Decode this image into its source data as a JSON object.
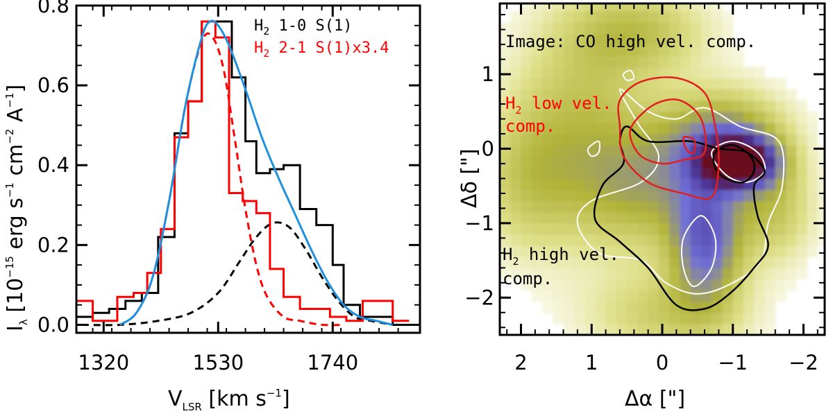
{
  "chart_data": [
    {
      "type": "line",
      "panel": "left",
      "title": "",
      "xlabel_main": "V",
      "xlabel_sub": "LSR",
      "xlabel_rest": " [km s",
      "xlabel_exp": "−1",
      "xlabel_end": "]",
      "ylabel_main": "I",
      "ylabel_sub": "λ",
      "ylabel_parts": [
        " [10",
        "−15",
        " erg s",
        "−1",
        " cm",
        "−2",
        " A",
        "−1",
        "]"
      ],
      "xlim": [
        1270,
        1900
      ],
      "ylim": [
        -0.02,
        0.8
      ],
      "xticks": [
        1320,
        1530,
        1740
      ],
      "xtick_labels": [
        "1320",
        "1530",
        "1740"
      ],
      "yticks": [
        0.0,
        0.2,
        0.4,
        0.6,
        0.8
      ],
      "ytick_labels": [
        "0.0",
        "0.2",
        "0.4",
        "0.6",
        "0.8"
      ],
      "legend": [
        {
          "pre": "H",
          "sub": "2",
          "post": " 1-0 S(1)",
          "color": "#000000"
        },
        {
          "pre": "H",
          "sub": "2",
          "post": " 2-1 S(1)x3.4",
          "color": "#ff0000"
        }
      ],
      "series": [
        {
          "name": "H2 1-0 S(1)",
          "style": "step",
          "color": "#000000",
          "x": [
            1270,
            1300,
            1330,
            1360,
            1390,
            1420,
            1450,
            1475,
            1500,
            1530,
            1555,
            1580,
            1600,
            1625,
            1650,
            1680,
            1710,
            1740,
            1760,
            1790,
            1820,
            1850,
            1880
          ],
          "y": [
            0.02,
            0.03,
            0.04,
            0.06,
            0.08,
            0.22,
            0.48,
            0.56,
            0.76,
            0.76,
            0.62,
            0.46,
            0.38,
            0.39,
            0.4,
            0.29,
            0.25,
            0.15,
            0.05,
            0.02,
            0.02,
            0.0,
            0.0
          ]
        },
        {
          "name": "H2 2-1 S(1)x3.4",
          "style": "step",
          "color": "#ff0000",
          "x": [
            1270,
            1300,
            1325,
            1345,
            1375,
            1400,
            1425,
            1450,
            1475,
            1500,
            1525,
            1550,
            1575,
            1600,
            1625,
            1650,
            1680,
            1705,
            1735,
            1765,
            1795,
            1825,
            1850,
            1880
          ],
          "y": [
            0.06,
            0.01,
            0.01,
            0.07,
            0.08,
            0.13,
            0.24,
            0.47,
            0.56,
            0.76,
            0.72,
            0.33,
            0.31,
            0.28,
            0.14,
            0.07,
            0.04,
            0.04,
            0.02,
            0.01,
            0.06,
            0.06,
            0.01,
            0.01
          ]
        },
        {
          "name": "Total fit",
          "style": "smooth",
          "color": "#1e90e0",
          "x": [
            1350,
            1380,
            1410,
            1440,
            1470,
            1500,
            1515,
            1530,
            1550,
            1580,
            1610,
            1640,
            1670,
            1700,
            1730,
            1760,
            1790,
            1820,
            1850
          ],
          "y": [
            0.0,
            0.03,
            0.12,
            0.31,
            0.55,
            0.72,
            0.76,
            0.75,
            0.7,
            0.59,
            0.47,
            0.37,
            0.28,
            0.19,
            0.11,
            0.05,
            0.02,
            0.01,
            0.0
          ]
        },
        {
          "name": "Low-velocity component",
          "style": "dashed",
          "color": "#ff0000",
          "x": [
            1350,
            1380,
            1410,
            1440,
            1470,
            1500,
            1520,
            1540,
            1560,
            1580,
            1600,
            1620,
            1650,
            1680,
            1720,
            1760
          ],
          "y": [
            0.0,
            0.03,
            0.12,
            0.31,
            0.55,
            0.71,
            0.72,
            0.64,
            0.47,
            0.29,
            0.15,
            0.07,
            0.02,
            0.01,
            0.0,
            0.0
          ]
        },
        {
          "name": "High-velocity component",
          "style": "dashed",
          "color": "#000000",
          "x": [
            1280,
            1350,
            1420,
            1480,
            1530,
            1570,
            1600,
            1630,
            1660,
            1690,
            1720,
            1750,
            1780,
            1810,
            1850
          ],
          "y": [
            0.0,
            0.0,
            0.01,
            0.03,
            0.08,
            0.16,
            0.22,
            0.255,
            0.245,
            0.19,
            0.12,
            0.06,
            0.02,
            0.01,
            0.0
          ]
        }
      ]
    },
    {
      "type": "heatmap",
      "panel": "right",
      "title": "",
      "annotation_top": "Image: CO high vel. comp.",
      "annotation_low_l1": " low vel.",
      "annotation_low_l2": "comp.",
      "annotation_high_l1": " high vel.",
      "annotation_high_l2": "comp.",
      "h_symbol": "H",
      "h_sub": "2",
      "xlabel": "Δα [\"]",
      "ylabel": "Δδ [\"]",
      "xlim": [
        2.3,
        -2.3
      ],
      "ylim": [
        -2.5,
        1.95
      ],
      "xticks": [
        2,
        1,
        0,
        -1,
        -2
      ],
      "xtick_labels": [
        "2",
        "1",
        "0",
        "−1",
        "−2"
      ],
      "yticks": [
        1,
        0,
        -1,
        -2
      ],
      "ytick_labels": [
        "1",
        "0",
        "−1",
        "−2"
      ],
      "colorscale": [
        "#ffffff",
        "#dfe08a",
        "#b0b238",
        "#7070d8",
        "#4a3290",
        "#6a0a1a"
      ],
      "blobs": [
        {
          "x": -1.0,
          "y": -0.25,
          "sx": 0.35,
          "sy": 0.22,
          "amp": 1.0
        },
        {
          "x": -0.55,
          "y": -1.3,
          "sx": 0.35,
          "sy": 0.6,
          "amp": 0.55
        },
        {
          "x": -0.8,
          "y": 0.05,
          "sx": 0.6,
          "sy": 0.45,
          "amp": 0.45
        },
        {
          "x": 0.3,
          "y": -0.6,
          "sx": 0.7,
          "sy": 0.6,
          "amp": 0.3
        },
        {
          "x": 1.2,
          "y": 0.3,
          "sx": 0.7,
          "sy": 1.0,
          "amp": 0.25
        },
        {
          "x": 0.4,
          "y": 1.5,
          "sx": 0.7,
          "sy": 0.4,
          "amp": 0.25
        },
        {
          "x": 2.0,
          "y": -0.5,
          "sx": 0.5,
          "sy": 0.7,
          "amp": 0.2
        },
        {
          "x": 0.0,
          "y": -2.3,
          "sx": 0.8,
          "sy": 0.4,
          "amp": 0.22
        },
        {
          "x": -1.5,
          "y": -0.9,
          "sx": 0.4,
          "sy": 0.5,
          "amp": 0.25
        }
      ],
      "contours": [
        {
          "name": "H2 low vel. comp. outer",
          "color": "#e02020",
          "points": [
            [
              0.6,
              0.65
            ],
            [
              0.3,
              0.9
            ],
            [
              -0.2,
              0.95
            ],
            [
              -0.6,
              0.75
            ],
            [
              -0.75,
              0.3
            ],
            [
              -0.8,
              -0.2
            ],
            [
              -0.7,
              -0.65
            ],
            [
              -0.3,
              -0.6
            ],
            [
              0.2,
              -0.45
            ],
            [
              0.55,
              -0.1
            ],
            [
              0.6,
              0.3
            ]
          ]
        },
        {
          "name": "H2 low vel. comp. inner",
          "color": "#e02020",
          "points": [
            [
              0.4,
              0.35
            ],
            [
              0.1,
              0.6
            ],
            [
              -0.25,
              0.65
            ],
            [
              -0.55,
              0.4
            ],
            [
              -0.6,
              -0.05
            ],
            [
              -0.3,
              -0.15
            ],
            [
              0.0,
              -0.2
            ],
            [
              0.3,
              -0.1
            ],
            [
              0.45,
              0.15
            ]
          ]
        },
        {
          "name": "H2 low vel. comp. peak",
          "color": "#e02020",
          "points": [
            [
              -0.3,
              0.15
            ],
            [
              -0.45,
              0.12
            ],
            [
              -0.45,
              -0.05
            ],
            [
              -0.35,
              -0.02
            ]
          ]
        },
        {
          "name": "H2 high vel. comp. outer",
          "color": "#000000",
          "points": [
            [
              0.5,
              0.3
            ],
            [
              0.2,
              0.1
            ],
            [
              -0.4,
              0.1
            ],
            [
              -0.8,
              0.0
            ],
            [
              -1.2,
              -0.05
            ],
            [
              -1.45,
              -0.3
            ],
            [
              -1.3,
              -0.5
            ],
            [
              -1.35,
              -0.9
            ],
            [
              -1.5,
              -1.3
            ],
            [
              -1.3,
              -1.6
            ],
            [
              -0.95,
              -1.95
            ],
            [
              -0.6,
              -2.15
            ],
            [
              -0.2,
              -2.1
            ],
            [
              0.2,
              -1.6
            ],
            [
              0.6,
              -1.25
            ],
            [
              0.95,
              -0.95
            ],
            [
              0.85,
              -0.5
            ],
            [
              0.55,
              -0.2
            ],
            [
              0.6,
              0.1
            ]
          ]
        },
        {
          "name": "H2 high vel. comp. inner",
          "color": "#000000",
          "points": [
            [
              -0.75,
              -0.05
            ],
            [
              -1.0,
              0.05
            ],
            [
              -1.25,
              -0.1
            ],
            [
              -1.3,
              -0.3
            ],
            [
              -1.15,
              -0.45
            ],
            [
              -0.9,
              -0.4
            ],
            [
              -0.75,
              -0.25
            ]
          ]
        },
        {
          "name": "CO white contour outer",
          "color": "#ffffff",
          "points": [
            [
              0.6,
              0.8
            ],
            [
              0.2,
              0.5
            ],
            [
              -0.2,
              0.4
            ],
            [
              -0.6,
              0.55
            ],
            [
              -1.1,
              0.3
            ],
            [
              -1.65,
              0.1
            ],
            [
              -1.7,
              -0.5
            ],
            [
              -1.5,
              -1.0
            ],
            [
              -1.4,
              -1.5
            ],
            [
              -1.0,
              -1.8
            ],
            [
              -0.5,
              -1.95
            ],
            [
              -0.05,
              -1.8
            ],
            [
              0.3,
              -1.5
            ],
            [
              0.9,
              -1.4
            ],
            [
              1.2,
              -1.0
            ],
            [
              1.0,
              -0.7
            ],
            [
              0.3,
              -0.45
            ],
            [
              0.05,
              -0.1
            ],
            [
              0.35,
              0.35
            ]
          ]
        },
        {
          "name": "CO white contour mid",
          "color": "#ffffff",
          "points": [
            [
              -0.7,
              -0.05
            ],
            [
              -1.0,
              0.1
            ],
            [
              -1.35,
              -0.05
            ],
            [
              -1.45,
              -0.3
            ],
            [
              -1.2,
              -0.45
            ],
            [
              -0.9,
              -0.35
            ]
          ]
        },
        {
          "name": "CO white contour south",
          "color": "#ffffff",
          "points": [
            [
              -0.3,
              -1.2
            ],
            [
              -0.55,
              -0.9
            ],
            [
              -0.75,
              -1.2
            ],
            [
              -0.7,
              -1.6
            ],
            [
              -0.45,
              -1.85
            ],
            [
              -0.3,
              -1.6
            ]
          ]
        },
        {
          "name": "CO white small north",
          "color": "#ffffff",
          "points": [
            [
              0.55,
              1.0
            ],
            [
              0.45,
              1.05
            ],
            [
              0.4,
              0.95
            ],
            [
              0.5,
              0.92
            ]
          ]
        },
        {
          "name": "CO white small west",
          "color": "#ffffff",
          "points": [
            [
              1.05,
              0.0
            ],
            [
              0.9,
              0.1
            ],
            [
              0.9,
              -0.05
            ],
            [
              1.0,
              -0.1
            ]
          ]
        }
      ]
    }
  ]
}
